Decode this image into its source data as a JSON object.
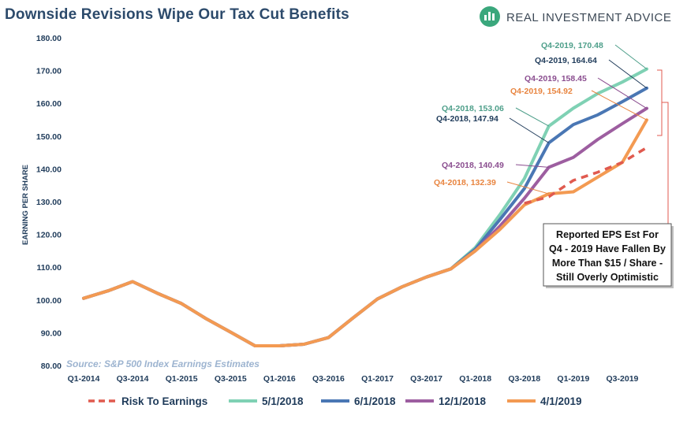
{
  "header": {
    "title": "Downside Revisions Wipe Our Tax Cut Benefits",
    "brand": "REAL INVESTMENT ADVICE"
  },
  "source_note": "Source: S&P 500 Index Earnings Estimates",
  "callout": {
    "lines": [
      "Reported EPS Est For",
      "Q4 - 2019 Have Fallen By",
      "More Than $15 / Share -",
      "Still Overly Optimistic"
    ]
  },
  "colors": {
    "risk": "#e05a4f",
    "s_20180501": "#7fd1b4",
    "s_20180601": "#4a77b4",
    "s_20181201": "#9d5ea0",
    "s_20190401": "#f39a52",
    "annotation_5_1": "#4e9f8a",
    "annotation_6_1": "#1f3b5a",
    "annotation_12_1": "#8a4d8f",
    "annotation_4_1": "#e8843f"
  },
  "chart_data": {
    "type": "line",
    "title": "Downside Revisions Wipe Our Tax Cut Benefits",
    "xlabel": "",
    "ylabel": "EARNING PER SHARE",
    "ylim": [
      80,
      180
    ],
    "yticks": [
      "80.00",
      "90.00",
      "100.00",
      "110.00",
      "120.00",
      "130.00",
      "140.00",
      "150.00",
      "160.00",
      "170.00",
      "180.00"
    ],
    "x": [
      "Q1-2014",
      "Q2-2014",
      "Q3-2014",
      "Q4-2014",
      "Q1-2015",
      "Q2-2015",
      "Q3-2015",
      "Q4-2015",
      "Q1-2016",
      "Q2-2016",
      "Q3-2016",
      "Q4-2016",
      "Q1-2017",
      "Q2-2017",
      "Q3-2017",
      "Q4-2017",
      "Q1-2018",
      "Q2-2018",
      "Q3-2018",
      "Q4-2018",
      "Q1-2019",
      "Q2-2019",
      "Q3-2019",
      "Q4-2019"
    ],
    "xtick_labels": [
      "Q1-2014",
      "Q3-2014",
      "Q1-2015",
      "Q3-2015",
      "Q1-2016",
      "Q3-2016",
      "Q1-2017",
      "Q3-2017",
      "Q1-2018",
      "Q3-2018",
      "Q1-2019",
      "Q3-2019"
    ],
    "grid": false,
    "legend_position": "bottom",
    "series": [
      {
        "name": "5/1/2018",
        "key": "s_20180501",
        "values": [
          100.5,
          102.8,
          105.6,
          102.1,
          98.9,
          94.3,
          90.2,
          86.0,
          86.0,
          86.5,
          88.5,
          94.5,
          100.3,
          104.0,
          107.0,
          109.5,
          116.0,
          126.0,
          137.0,
          153.06,
          158.5,
          163.0,
          166.5,
          170.48
        ]
      },
      {
        "name": "6/1/2018",
        "key": "s_20180601",
        "values": [
          100.5,
          102.8,
          105.6,
          102.1,
          98.9,
          94.3,
          90.2,
          86.0,
          86.0,
          86.5,
          88.5,
          94.5,
          100.3,
          104.0,
          107.0,
          109.5,
          115.5,
          124.5,
          134.0,
          147.94,
          153.5,
          156.5,
          160.5,
          164.64
        ]
      },
      {
        "name": "12/1/2018",
        "key": "s_20181201",
        "values": [
          100.5,
          102.8,
          105.6,
          102.1,
          98.9,
          94.3,
          90.2,
          86.0,
          86.0,
          86.5,
          88.5,
          94.5,
          100.3,
          104.0,
          107.0,
          109.5,
          115.0,
          122.5,
          131.0,
          140.49,
          143.5,
          149.0,
          153.8,
          158.45
        ]
      },
      {
        "name": "4/1/2019",
        "key": "s_20190401",
        "values": [
          100.5,
          102.8,
          105.6,
          102.1,
          98.9,
          94.3,
          90.2,
          86.0,
          86.0,
          86.5,
          88.5,
          94.5,
          100.3,
          104.0,
          107.0,
          109.5,
          115.0,
          121.5,
          129.0,
          132.39,
          133.0,
          137.5,
          142.0,
          154.92
        ]
      },
      {
        "name": "Risk To Earnings",
        "key": "risk",
        "dashed": true,
        "start_index": 18,
        "values": [
          null,
          null,
          null,
          null,
          null,
          null,
          null,
          null,
          null,
          null,
          null,
          null,
          null,
          null,
          null,
          null,
          null,
          null,
          129.5,
          131.5,
          136.5,
          139.0,
          142.0,
          146.5
        ]
      }
    ],
    "annotations": [
      {
        "label": "Q4-2019,  170.48",
        "series": "s_20180501",
        "index": 23,
        "color_key": "annotation_5_1"
      },
      {
        "label": "Q4-2019,  164.64",
        "series": "s_20180601",
        "index": 23,
        "color_key": "annotation_6_1"
      },
      {
        "label": "Q4-2019,  158.45",
        "series": "s_20181201",
        "index": 23,
        "color_key": "annotation_12_1"
      },
      {
        "label": "Q4-2019,  154.92",
        "series": "s_20190401",
        "index": 23,
        "color_key": "annotation_4_1"
      },
      {
        "label": "Q4-2018,  153.06",
        "series": "s_20180501",
        "index": 19,
        "color_key": "annotation_5_1"
      },
      {
        "label": "Q4-2018,  147.94",
        "series": "s_20180601",
        "index": 19,
        "color_key": "annotation_6_1"
      },
      {
        "label": "Q4-2018,  140.49",
        "series": "s_20181201",
        "index": 19,
        "color_key": "annotation_12_1"
      },
      {
        "label": "Q4-2018,  132.39",
        "series": "s_20190401",
        "index": 19,
        "color_key": "annotation_4_1"
      }
    ],
    "legend": [
      {
        "label": "Risk To Earnings",
        "key": "risk",
        "dashed": true
      },
      {
        "label": "5/1/2018",
        "key": "s_20180501"
      },
      {
        "label": "6/1/2018",
        "key": "s_20180601"
      },
      {
        "label": "12/1/2018",
        "key": "s_20181201"
      },
      {
        "label": "4/1/2019",
        "key": "s_20190401"
      }
    ]
  }
}
